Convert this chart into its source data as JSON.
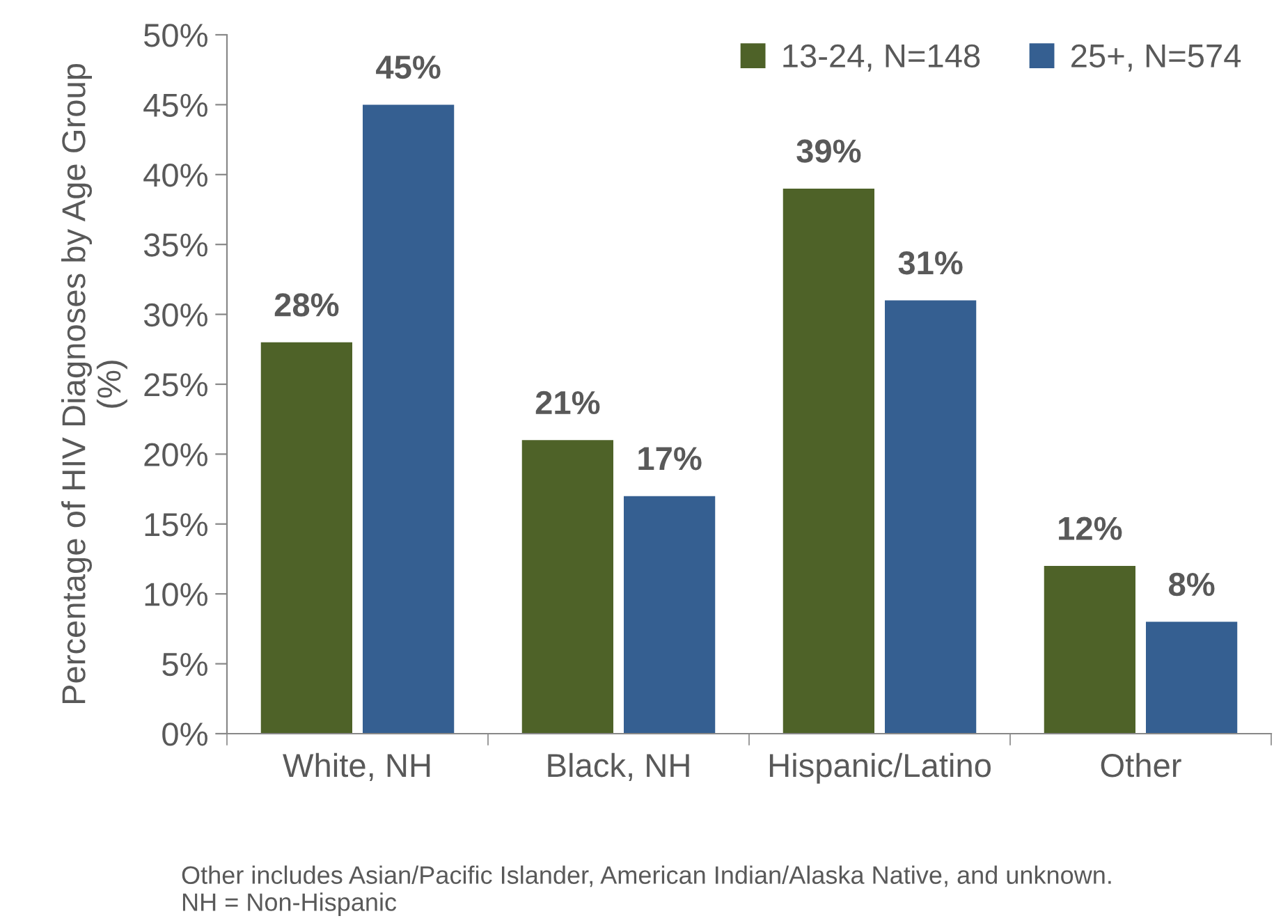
{
  "chart_data": {
    "type": "bar",
    "ylabel": "Percentage of HIV Diagnoses by Age Group\n(%)",
    "categories": [
      "White, NH",
      "Black, NH",
      "Hispanic/Latino",
      "Other"
    ],
    "series": [
      {
        "name": "13-24, N=148",
        "color": "#4e6228",
        "values": [
          28,
          21,
          39,
          12
        ],
        "value_labels": [
          "28%",
          "21%",
          "39%",
          "12%"
        ]
      },
      {
        "name": "25+, N=574",
        "color": "#355f91",
        "values": [
          45,
          17,
          31,
          8
        ],
        "value_labels": [
          "45%",
          "17%",
          "31%",
          "8%"
        ]
      }
    ],
    "ylim": [
      0,
      50
    ],
    "yticks": [
      {
        "value": 0,
        "label": "0%"
      },
      {
        "value": 5,
        "label": "5%"
      },
      {
        "value": 10,
        "label": "10%"
      },
      {
        "value": 15,
        "label": "15%"
      },
      {
        "value": 20,
        "label": "20%"
      },
      {
        "value": 25,
        "label": "25%"
      },
      {
        "value": 30,
        "label": "30%"
      },
      {
        "value": 35,
        "label": "35%"
      },
      {
        "value": 40,
        "label": "40%"
      },
      {
        "value": 45,
        "label": "45%"
      },
      {
        "value": 50,
        "label": "50%"
      }
    ],
    "legend": "top right",
    "grid": false,
    "annotations": [
      "Other includes Asian/Pacific Islander, American Indian/Alaska Native, and unknown.\nNH = Non-Hispanic"
    ]
  }
}
